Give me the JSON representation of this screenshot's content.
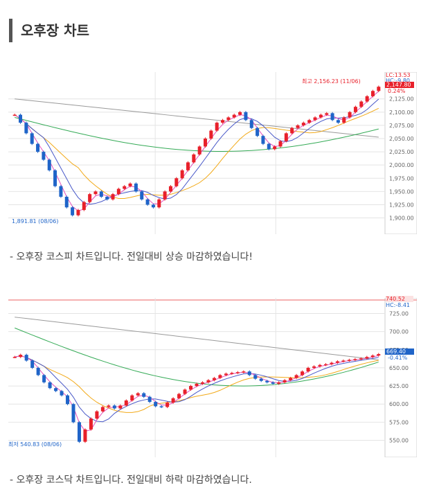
{
  "page": {
    "title": "오후장 차트"
  },
  "kospi": {
    "caption": "- 오후장 코스피 차트입니다. 전일대비 상승 마감하였습니다!",
    "max_label": "최고 2,156.23 (11/06)",
    "min_label": "1,891.81 (08/06)",
    "lc_label": "LC:13.53",
    "hc_label": "HC:-9.80",
    "current_value": "2,147.80",
    "change_pct": "0.24%"
  },
  "kosdaq": {
    "caption": "- 오후장 코스닥 차트입니다. 전일대비 하락 마감하였습니다.",
    "min_label": "최저 540.83 (08/06)",
    "lc_label": "740.52",
    "hc_label": "HC:-8.41",
    "current_value": "669.40",
    "change_pct": "-0.41%"
  },
  "chart_data": [
    {
      "type": "candlestick",
      "title": "",
      "yticks": [
        "2,125.00",
        "2,100.00",
        "2,075.00",
        "2,050.00",
        "2,025.00",
        "2,000.00",
        "1,975.00",
        "1,950.00",
        "1,925.00",
        "1,900.00"
      ],
      "ylim": [
        1885,
        2160
      ],
      "closes": [
        2095,
        2080,
        2060,
        2040,
        2025,
        2010,
        1990,
        1960,
        1940,
        1920,
        1905,
        1915,
        1930,
        1945,
        1950,
        1940,
        1935,
        1945,
        1955,
        1960,
        1965,
        1950,
        1935,
        1925,
        1920,
        1935,
        1950,
        1960,
        1975,
        1990,
        2005,
        2020,
        2035,
        2050,
        2065,
        2080,
        2085,
        2090,
        2095,
        2100,
        2085,
        2070,
        2055,
        2040,
        2030,
        2035,
        2045,
        2060,
        2070,
        2075,
        2080,
        2085,
        2090,
        2095,
        2098,
        2085,
        2080,
        2090,
        2100,
        2110,
        2120,
        2130,
        2140,
        2148
      ],
      "colors": {
        "up": "#e8202a",
        "down": "#1f64c8",
        "ma5": "#e64fbb",
        "ma20": "#4858c8",
        "ma60": "#f2a917",
        "ma120": "#33aa55",
        "ma240": "#999999"
      }
    },
    {
      "type": "candlestick",
      "title": "",
      "yticks": [
        "725.00",
        "700.00",
        "675.00",
        "650.00",
        "625.00",
        "600.00",
        "575.00",
        "550.00"
      ],
      "ylim": [
        540,
        735
      ],
      "closes": [
        665,
        668,
        660,
        650,
        640,
        630,
        622,
        618,
        612,
        600,
        575,
        548,
        565,
        580,
        590,
        596,
        598,
        594,
        598,
        605,
        612,
        615,
        610,
        603,
        597,
        596,
        602,
        608,
        614,
        620,
        625,
        628,
        630,
        633,
        636,
        640,
        642,
        643,
        644,
        645,
        640,
        635,
        632,
        630,
        628,
        630,
        633,
        636,
        640,
        645,
        650,
        652,
        654,
        655,
        657,
        659,
        660,
        661,
        662,
        663,
        665,
        667,
        669
      ],
      "colors": {
        "up": "#e8202a",
        "down": "#1f64c8",
        "ma5": "#e64fbb",
        "ma20": "#4858c8",
        "ma60": "#f2a917",
        "ma120": "#33aa55",
        "ma240": "#999999"
      }
    }
  ]
}
